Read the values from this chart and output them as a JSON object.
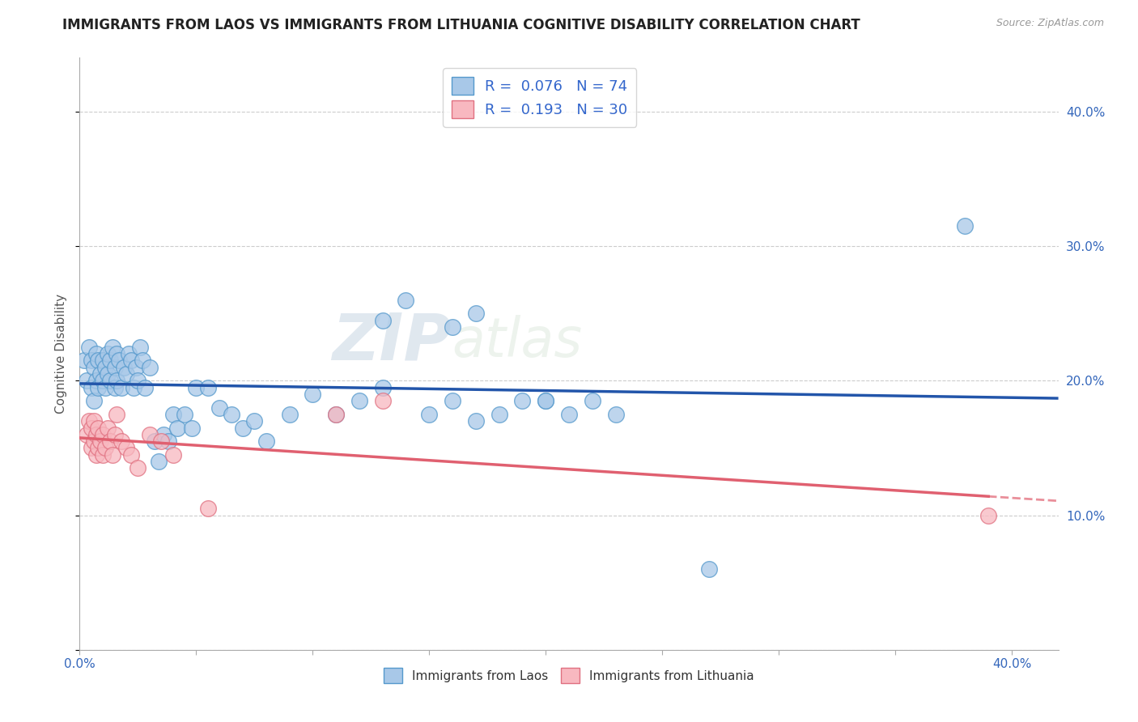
{
  "title": "IMMIGRANTS FROM LAOS VS IMMIGRANTS FROM LITHUANIA COGNITIVE DISABILITY CORRELATION CHART",
  "source_text": "Source: ZipAtlas.com",
  "ylabel": "Cognitive Disability",
  "xlim": [
    0.0,
    0.42
  ],
  "ylim": [
    0.0,
    0.44
  ],
  "x_ticks": [
    0.0,
    0.05,
    0.1,
    0.15,
    0.2,
    0.25,
    0.3,
    0.35,
    0.4
  ],
  "y_ticks": [
    0.0,
    0.1,
    0.2,
    0.3,
    0.4
  ],
  "laos_color": "#a8c8e8",
  "laos_edge_color": "#5599cc",
  "lithuania_color": "#f8b8c0",
  "lithuania_edge_color": "#e07080",
  "laos_line_color": "#2255aa",
  "lithuania_line_color": "#e06070",
  "laos_R": 0.076,
  "laos_N": 74,
  "lithuania_R": 0.193,
  "lithuania_N": 30,
  "laos_x": [
    0.002,
    0.003,
    0.004,
    0.005,
    0.005,
    0.006,
    0.006,
    0.007,
    0.007,
    0.008,
    0.008,
    0.009,
    0.01,
    0.01,
    0.011,
    0.011,
    0.012,
    0.012,
    0.013,
    0.013,
    0.014,
    0.015,
    0.015,
    0.016,
    0.016,
    0.017,
    0.018,
    0.019,
    0.02,
    0.021,
    0.022,
    0.023,
    0.024,
    0.025,
    0.026,
    0.027,
    0.028,
    0.03,
    0.032,
    0.034,
    0.036,
    0.038,
    0.04,
    0.042,
    0.045,
    0.048,
    0.05,
    0.055,
    0.06,
    0.065,
    0.07,
    0.075,
    0.08,
    0.09,
    0.1,
    0.11,
    0.12,
    0.13,
    0.15,
    0.16,
    0.17,
    0.18,
    0.2,
    0.21,
    0.22,
    0.23,
    0.16,
    0.17,
    0.19,
    0.2,
    0.13,
    0.14,
    0.27,
    0.38
  ],
  "laos_y": [
    0.215,
    0.2,
    0.225,
    0.195,
    0.215,
    0.185,
    0.21,
    0.2,
    0.22,
    0.195,
    0.215,
    0.205,
    0.2,
    0.215,
    0.195,
    0.21,
    0.205,
    0.22,
    0.2,
    0.215,
    0.225,
    0.195,
    0.21,
    0.2,
    0.22,
    0.215,
    0.195,
    0.21,
    0.205,
    0.22,
    0.215,
    0.195,
    0.21,
    0.2,
    0.225,
    0.215,
    0.195,
    0.21,
    0.155,
    0.14,
    0.16,
    0.155,
    0.175,
    0.165,
    0.175,
    0.165,
    0.195,
    0.195,
    0.18,
    0.175,
    0.165,
    0.17,
    0.155,
    0.175,
    0.19,
    0.175,
    0.185,
    0.195,
    0.175,
    0.185,
    0.17,
    0.175,
    0.185,
    0.175,
    0.185,
    0.175,
    0.24,
    0.25,
    0.185,
    0.185,
    0.245,
    0.26,
    0.06,
    0.315
  ],
  "lithuania_x": [
    0.003,
    0.004,
    0.005,
    0.005,
    0.006,
    0.006,
    0.007,
    0.007,
    0.008,
    0.008,
    0.009,
    0.01,
    0.01,
    0.011,
    0.012,
    0.013,
    0.014,
    0.015,
    0.016,
    0.018,
    0.02,
    0.022,
    0.025,
    0.03,
    0.035,
    0.04,
    0.055,
    0.11,
    0.13,
    0.39
  ],
  "lithuania_y": [
    0.16,
    0.17,
    0.15,
    0.165,
    0.155,
    0.17,
    0.145,
    0.16,
    0.15,
    0.165,
    0.155,
    0.145,
    0.16,
    0.15,
    0.165,
    0.155,
    0.145,
    0.16,
    0.175,
    0.155,
    0.15,
    0.145,
    0.135,
    0.16,
    0.155,
    0.145,
    0.105,
    0.175,
    0.185,
    0.1
  ],
  "background_color": "#ffffff",
  "watermark_text": "ZIPatlas",
  "title_fontsize": 12,
  "axis_label_fontsize": 11,
  "tick_fontsize": 11,
  "legend_R_color": "#3399cc",
  "legend_N_color": "#cc3300"
}
